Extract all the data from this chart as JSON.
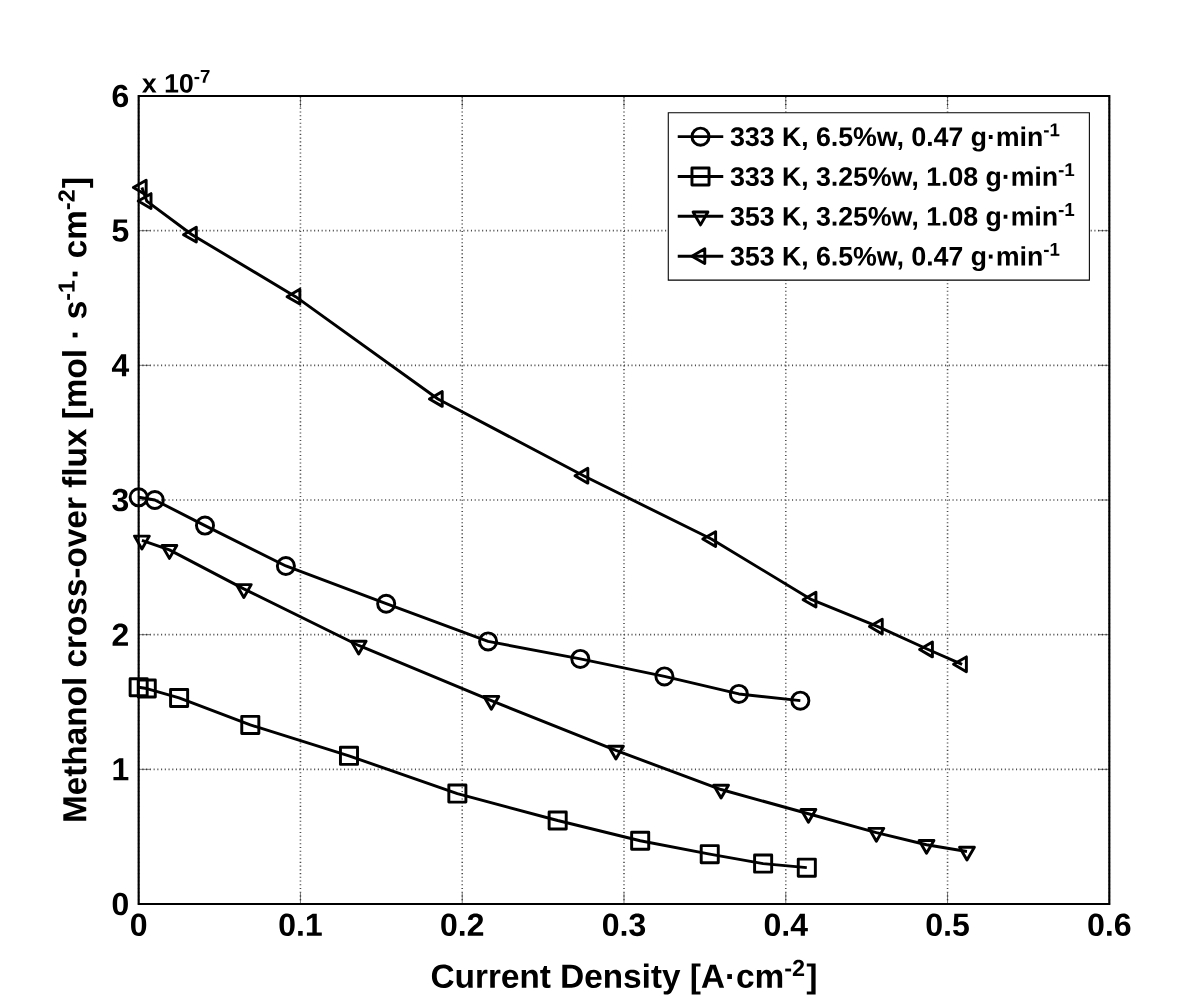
{
  "chart_data": {
    "type": "line",
    "xlabel": "Current Density [A·cm$^{-2}$]",
    "ylabel": "Methanol cross-over flux [mol · s$^{-1}$· cm$^{-2}$]",
    "annotations": [
      "x 10$^{-7}$"
    ],
    "xlim": [
      0,
      0.6
    ],
    "ylim": [
      0,
      6
    ],
    "xticks": [
      0,
      0.1,
      0.2,
      0.3,
      0.4,
      0.5,
      0.6
    ],
    "yticks": [
      0,
      1,
      2,
      3,
      4,
      5,
      6
    ],
    "grid": true,
    "legend": "top right",
    "line_style": "solid",
    "series": [
      {
        "name": "333 K, 6.5%w, 0.47 g·min$^{-1}$",
        "color": "#000000",
        "marker": "circle",
        "x": [
          0,
          0.01,
          0.041,
          0.091,
          0.153,
          0.216,
          0.273,
          0.325,
          0.371,
          0.409
        ],
        "values": [
          3.02,
          3.0,
          2.81,
          2.51,
          2.23,
          1.95,
          1.82,
          1.69,
          1.56,
          1.51
        ]
      },
      {
        "name": "333 K, 3.25%w, 1.08 g·min$^{-1}$",
        "color": "#000000",
        "marker": "square",
        "x": [
          0,
          0.005,
          0.025,
          0.069,
          0.13,
          0.197,
          0.259,
          0.31,
          0.353,
          0.386,
          0.413
        ],
        "values": [
          1.61,
          1.6,
          1.53,
          1.33,
          1.1,
          0.82,
          0.62,
          0.47,
          0.37,
          0.3,
          0.27
        ]
      },
      {
        "name": "353 K, 3.25%w, 1.08 g·min$^{-1}$",
        "color": "#000000",
        "marker": "triangle-down",
        "x": [
          0.002,
          0.019,
          0.065,
          0.136,
          0.218,
          0.295,
          0.36,
          0.414,
          0.456,
          0.487,
          0.512
        ],
        "values": [
          2.7,
          2.63,
          2.34,
          1.92,
          1.51,
          1.14,
          0.85,
          0.67,
          0.53,
          0.44,
          0.39
        ]
      },
      {
        "name": "353 K, 6.5%w, 0.47 g·min$^{-1}$",
        "color": "#000000",
        "marker": "triangle-left",
        "x": [
          0.002,
          0.005,
          0.033,
          0.097,
          0.185,
          0.275,
          0.354,
          0.416,
          0.457,
          0.488,
          0.509
        ],
        "values": [
          5.32,
          5.22,
          4.97,
          4.51,
          3.75,
          3.18,
          2.71,
          2.26,
          2.06,
          1.89,
          1.78
        ]
      }
    ]
  }
}
